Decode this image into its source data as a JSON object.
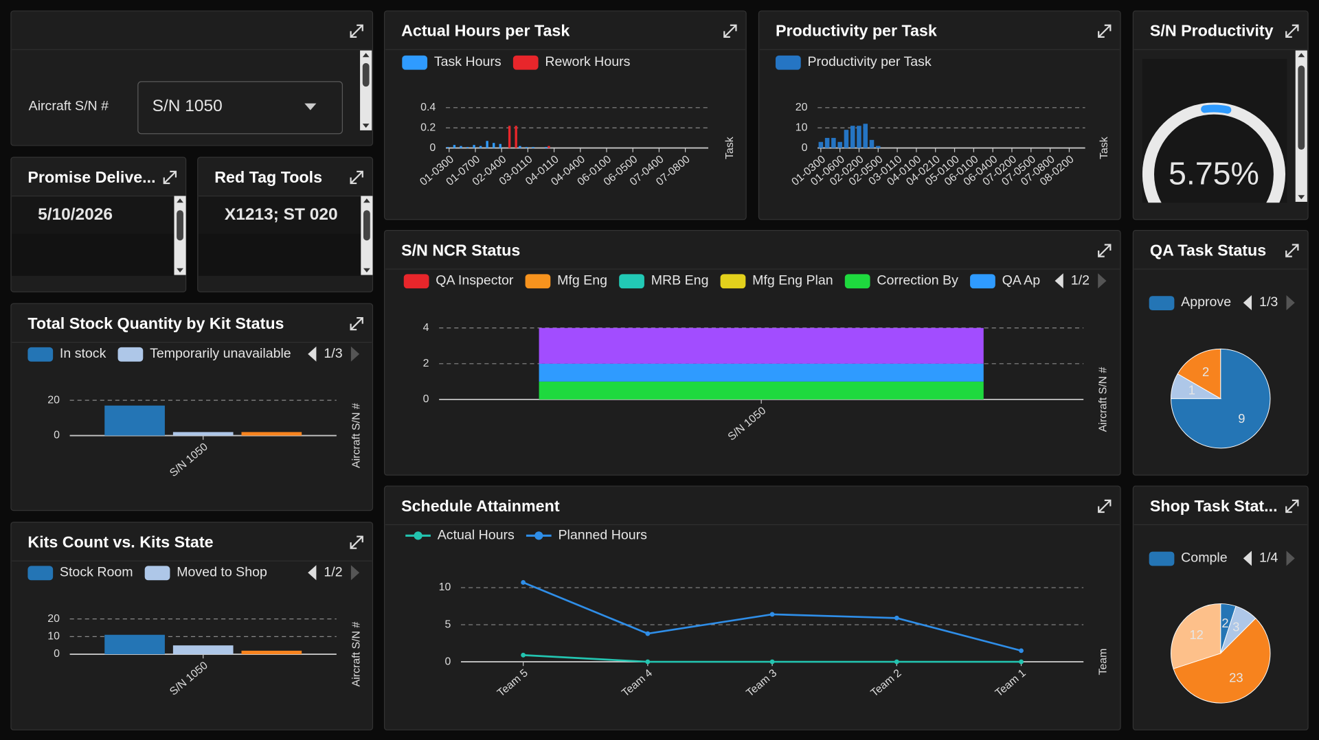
{
  "filter": {
    "label": "Aircraft S/N #",
    "value": "S/N 1050"
  },
  "cards": [
    {
      "title": "Promise Delive...",
      "value": "5/10/2026",
      "color": "#2ed84a"
    },
    {
      "title": "Red Tag Tools",
      "value": "X1213; ST 020",
      "color": "#ff2b2b"
    }
  ],
  "chart_data": [
    {
      "type": "bar",
      "title": "Actual Hours per Task",
      "x_label": "Task",
      "categories": [
        "01-0300",
        null,
        null,
        null,
        "01-0700",
        null,
        null,
        null,
        "02-0400",
        null,
        null,
        null,
        "03-0110",
        null,
        null,
        null,
        "04-0110",
        null,
        null,
        null,
        "04-0400",
        null,
        null,
        null,
        "06-0100",
        null,
        null,
        null,
        "06-0500",
        null,
        null,
        null,
        "07-0400",
        null,
        null,
        null,
        "07-0800",
        null,
        null,
        null
      ],
      "series": [
        {
          "name": "Task Hours",
          "color": "#2f9bff",
          "values": [
            0.01,
            0.03,
            0.02,
            0.01,
            0.03,
            0.02,
            0.07,
            0.05,
            0.04,
            0,
            0,
            0.02,
            0.01,
            0.01,
            0,
            0.01,
            0,
            0,
            0,
            0,
            0,
            0,
            0,
            0,
            0,
            0,
            0,
            0,
            0,
            0,
            0,
            0,
            0,
            0,
            0,
            0,
            0,
            0,
            0,
            0
          ]
        },
        {
          "name": "Rework Hours",
          "color": "#e8262b",
          "values": [
            0,
            0,
            0,
            0,
            0,
            0,
            0,
            0,
            0,
            0.22,
            0.22,
            0,
            0,
            0,
            0,
            0.02,
            0,
            0,
            0,
            0,
            0,
            0,
            0,
            0,
            0,
            0,
            0,
            0,
            0,
            0,
            0,
            0,
            0,
            0,
            0,
            0,
            0,
            0,
            0,
            0
          ]
        }
      ],
      "ylim": [
        0,
        0.4
      ],
      "yticks": [
        0,
        0.2,
        0.4
      ],
      "grid": true
    },
    {
      "type": "bar",
      "title": "Productivity per Task",
      "x_label": "Task",
      "categories": [
        "01-0300",
        null,
        null,
        "01-0600",
        null,
        null,
        "02-0200",
        null,
        null,
        "02-0500",
        null,
        null,
        "03-0110",
        null,
        null,
        "04-0100",
        null,
        null,
        "04-0210",
        null,
        null,
        "05-0100",
        null,
        null,
        "06-0100",
        null,
        null,
        "06-0400",
        null,
        null,
        "07-0200",
        null,
        null,
        "07-0500",
        null,
        null,
        "07-0800",
        null,
        null,
        "08-0200",
        null,
        null
      ],
      "series": [
        {
          "name": "Productivity per Task",
          "color": "#2575c4",
          "values": [
            3,
            5,
            5,
            3,
            9,
            11,
            11,
            12,
            4,
            1,
            0,
            0,
            0,
            0,
            0,
            0,
            0,
            0,
            0,
            0,
            0,
            0,
            0,
            0,
            0,
            0,
            0,
            0,
            0,
            0,
            0,
            0,
            0,
            0,
            0,
            0,
            0,
            0,
            0,
            0,
            0,
            0
          ]
        }
      ],
      "ylim": [
        0,
        20
      ],
      "yticks": [
        0,
        10,
        20
      ],
      "grid": true
    },
    {
      "type": "gauge",
      "title": "S/N Productivity",
      "values": [
        5.75
      ],
      "value_labels": [
        "5.75%"
      ],
      "color": "#2f9bff"
    },
    {
      "type": "bar",
      "title": "S/N NCR Status",
      "x_label": "Aircraft S/N #",
      "stacked": true,
      "legend_page": "1/2",
      "categories": [
        "S/N 1050"
      ],
      "series": [
        {
          "name": "QA Inspector",
          "color": "#e8262b",
          "values": [
            0
          ]
        },
        {
          "name": "Mfg Eng",
          "color": "#f7931e",
          "values": [
            0
          ]
        },
        {
          "name": "MRB Eng",
          "color": "#22c9b5",
          "values": [
            0
          ]
        },
        {
          "name": "Mfg Eng Plan",
          "color": "#e3d11c",
          "values": [
            0
          ]
        },
        {
          "name": "Correction By",
          "color": "#1ed93e",
          "values": [
            1
          ]
        },
        {
          "name": "QA Ap",
          "color": "#2f9bff",
          "values": [
            1
          ]
        },
        {
          "name": null,
          "color": "#a24dff",
          "values": [
            2
          ]
        }
      ],
      "ylim": [
        0,
        4
      ],
      "yticks": [
        0,
        2,
        4
      ],
      "grid": true
    },
    {
      "type": "pie",
      "title": "QA Task Status",
      "legend_page": "1/3",
      "categories": [
        "Approve",
        null,
        null
      ],
      "values": [
        9,
        1,
        2
      ],
      "colors": [
        "#2475b5",
        "#aec7e8",
        "#f7831e"
      ]
    },
    {
      "type": "bar",
      "title": "Total Stock Quantity by Kit Status",
      "x_label": "Aircraft S/N #",
      "legend_page": "1/3",
      "categories": [
        "S/N 1050"
      ],
      "series": [
        {
          "name": "In stock",
          "color": "#2475b5",
          "values": [
            17
          ]
        },
        {
          "name": "Temporarily unavailable",
          "color": "#aec7e8",
          "values": [
            2
          ]
        },
        {
          "name": null,
          "color": "#f7831e",
          "values": [
            2
          ]
        }
      ],
      "ylim": [
        0,
        20
      ],
      "yticks": [
        0,
        20
      ],
      "grid": true
    },
    {
      "type": "bar",
      "title": "Kits Count vs. Kits State",
      "x_label": "Aircraft S/N #",
      "legend_page": "1/2",
      "categories": [
        "S/N 1050"
      ],
      "series": [
        {
          "name": "Stock Room",
          "color": "#2475b5",
          "values": [
            11
          ]
        },
        {
          "name": "Moved to Shop",
          "color": "#aec7e8",
          "values": [
            5
          ]
        },
        {
          "name": null,
          "color": "#f7831e",
          "values": [
            2
          ]
        }
      ],
      "ylim": [
        0,
        20
      ],
      "yticks": [
        0,
        10,
        20
      ],
      "grid": true
    },
    {
      "type": "line",
      "title": "Schedule Attainment",
      "x_label": "Team",
      "categories": [
        "Team 5",
        "Team 4",
        "Team 3",
        "Team 2",
        "Team 1"
      ],
      "series": [
        {
          "name": "Actual Hours",
          "color": "#23c4b0",
          "values": [
            0.9,
            0,
            0,
            0,
            0
          ]
        },
        {
          "name": "Planned Hours",
          "color": "#2f8ee8",
          "values": [
            10.7,
            3.8,
            6.4,
            5.9,
            1.5
          ]
        }
      ],
      "ylim": [
        0,
        11
      ],
      "yticks": [
        0,
        5,
        10
      ],
      "grid": true
    },
    {
      "type": "pie",
      "title": "Shop Task Stat...",
      "legend_page": "1/4",
      "categories": [
        "Comple",
        null,
        null,
        null
      ],
      "values": [
        2,
        3,
        23,
        12
      ],
      "colors": [
        "#2475b5",
        "#aec7e8",
        "#f7831e",
        "#fdc08a"
      ]
    }
  ]
}
